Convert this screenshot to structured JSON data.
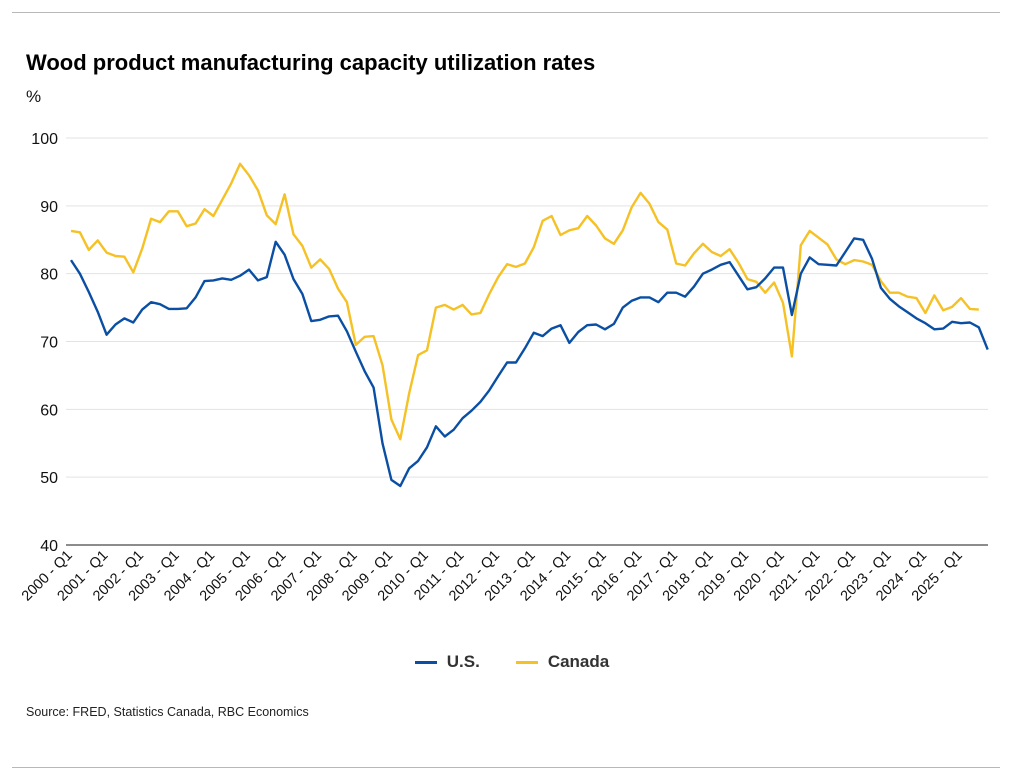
{
  "chart_data": {
    "type": "line",
    "title": "Wood product manufacturing capacity utilization rates",
    "ylabel": "%",
    "xlabel": "",
    "ylim": [
      40,
      100
    ],
    "yticks": [
      40,
      50,
      60,
      70,
      80,
      90,
      100
    ],
    "grid": true,
    "legend_position": "bottom-center",
    "x_start": "2000 - Q1",
    "x_tick_labels": [
      "2000 - Q1",
      "2001 - Q1",
      "2002 - Q1",
      "2003 - Q1",
      "2004 - Q1",
      "2005 - Q1",
      "2006 - Q1",
      "2007 - Q1",
      "2008 - Q1",
      "2009 - Q1",
      "2010 - Q1",
      "2011 - Q1",
      "2012 - Q1",
      "2013 - Q1",
      "2014 - Q1",
      "2015 - Q1",
      "2016 - Q1",
      "2017 - Q1",
      "2018 - Q1",
      "2019 - Q1",
      "2020 - Q1",
      "2021 - Q1",
      "2022 - Q1",
      "2023 - Q1",
      "2024 - Q1",
      "2025 - Q1"
    ],
    "series": [
      {
        "name": "U.S.",
        "color": "#0a4fa3",
        "values": [
          82.0,
          80.0,
          77.3,
          74.4,
          71.0,
          72.5,
          73.4,
          72.8,
          74.7,
          75.8,
          75.5,
          74.8,
          74.8,
          74.9,
          76.5,
          78.9,
          79.0,
          79.3,
          79.1,
          79.7,
          80.6,
          79.0,
          79.5,
          84.7,
          82.8,
          79.2,
          77.0,
          73.0,
          73.2,
          73.7,
          73.8,
          71.5,
          68.5,
          65.6,
          63.2,
          55.0,
          49.6,
          48.7,
          51.3,
          52.4,
          54.4,
          57.5,
          56.0,
          57.0,
          58.7,
          59.8,
          61.1,
          62.8,
          64.9,
          66.9,
          66.9,
          69.0,
          71.3,
          70.8,
          71.9,
          72.4,
          69.8,
          71.4,
          72.4,
          72.5,
          71.8,
          72.6,
          75.0,
          76.0,
          76.5,
          76.5,
          75.8,
          77.2,
          77.2,
          76.6,
          78.1,
          80.0,
          80.6,
          81.3,
          81.7,
          79.7,
          77.7,
          78.0,
          79.3,
          80.9,
          80.9,
          73.9,
          80.0,
          82.4,
          81.4,
          81.3,
          81.2,
          83.2,
          85.2,
          85.0,
          82.2,
          77.9,
          76.3,
          75.2,
          74.3,
          73.4,
          72.7,
          71.8,
          71.9,
          72.9,
          72.7,
          72.8,
          72.1,
          68.8
        ]
      },
      {
        "name": "Canada",
        "color": "#f5c125",
        "values": [
          86.3,
          86.1,
          83.5,
          84.9,
          83.1,
          82.6,
          82.5,
          80.2,
          83.7,
          88.1,
          87.6,
          89.2,
          89.2,
          87.0,
          87.4,
          89.5,
          88.5,
          90.9,
          93.3,
          96.2,
          94.5,
          92.3,
          88.6,
          87.3,
          91.7,
          85.8,
          84.1,
          80.9,
          82.1,
          80.7,
          77.8,
          75.8,
          69.5,
          70.7,
          70.8,
          66.5,
          58.5,
          55.6,
          62.4,
          68.0,
          68.7,
          75.0,
          75.4,
          74.7,
          75.4,
          74.0,
          74.2,
          77.0,
          79.5,
          81.4,
          81.0,
          81.5,
          83.9,
          87.8,
          88.5,
          85.7,
          86.4,
          86.7,
          88.5,
          87.1,
          85.2,
          84.4,
          86.4,
          89.8,
          91.9,
          90.3,
          87.6,
          86.5,
          81.5,
          81.2,
          83.0,
          84.4,
          83.2,
          82.6,
          83.6,
          81.6,
          79.2,
          78.8,
          77.2,
          78.7,
          75.7,
          67.8,
          84.2,
          86.3,
          85.3,
          84.3,
          82.1,
          81.4,
          82.0,
          81.8,
          81.3,
          78.9,
          77.2,
          77.2,
          76.6,
          76.4,
          74.2,
          76.8,
          74.6,
          75.1,
          76.4,
          74.8,
          74.7
        ]
      }
    ]
  },
  "source": "Source: FRED, Statistics Canada, RBC Economics"
}
